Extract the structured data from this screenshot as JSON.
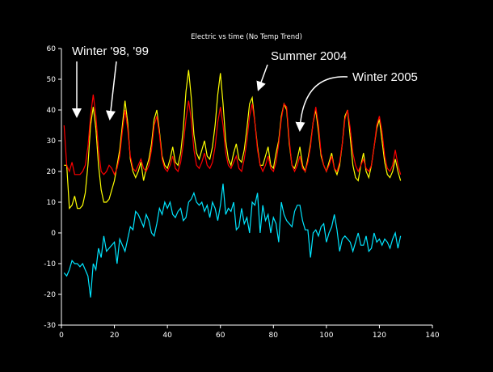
{
  "chart_data": {
    "type": "line",
    "title": "Electric vs time (No Temp Trend)",
    "annotations": [
      "Winter '98, '99",
      "Summer 2004",
      "Winter 2005"
    ],
    "x": [
      1,
      2,
      3,
      4,
      5,
      6,
      7,
      8,
      9,
      10,
      11,
      12,
      13,
      14,
      15,
      16,
      17,
      18,
      19,
      20,
      21,
      22,
      23,
      24,
      25,
      26,
      27,
      28,
      29,
      30,
      31,
      32,
      33,
      34,
      35,
      36,
      37,
      38,
      39,
      40,
      41,
      42,
      43,
      44,
      45,
      46,
      47,
      48,
      49,
      50,
      51,
      52,
      53,
      54,
      55,
      56,
      57,
      58,
      59,
      60,
      61,
      62,
      63,
      64,
      65,
      66,
      67,
      68,
      69,
      70,
      71,
      72,
      73,
      74,
      75,
      76,
      77,
      78,
      79,
      80,
      81,
      82,
      83,
      84,
      85,
      86,
      87,
      88,
      89,
      90,
      91,
      92,
      93,
      94,
      95,
      96,
      97,
      98,
      99,
      100,
      101,
      102,
      103,
      104,
      105,
      106,
      107,
      108,
      109,
      110,
      111,
      112,
      113,
      114,
      115,
      116,
      117,
      118,
      119,
      120,
      121,
      122,
      123,
      124,
      125,
      126,
      127,
      128
    ],
    "series": [
      {
        "color": "#ffff00",
        "values": [
          22,
          22,
          8,
          9,
          12,
          8,
          8,
          9,
          13,
          22,
          35,
          41,
          34,
          22,
          14,
          10,
          10,
          11,
          14,
          17,
          22,
          27,
          35,
          43,
          36,
          24,
          20,
          18,
          20,
          23,
          17,
          21,
          24,
          29,
          37,
          40,
          33,
          25,
          22,
          21,
          24,
          28,
          23,
          22,
          26,
          34,
          46,
          53,
          44,
          32,
          26,
          24,
          27,
          30,
          25,
          24,
          28,
          35,
          45,
          52,
          42,
          30,
          24,
          22,
          26,
          29,
          24,
          23,
          27,
          34,
          42,
          44,
          36,
          28,
          22,
          22,
          25,
          28,
          22,
          21,
          26,
          30,
          38,
          42,
          40,
          29,
          22,
          21,
          24,
          28,
          22,
          20,
          24,
          29,
          36,
          40,
          33,
          25,
          22,
          20,
          23,
          26,
          21,
          19,
          22,
          29,
          38,
          40,
          31,
          22,
          18,
          17,
          22,
          26,
          20,
          18,
          22,
          28,
          34,
          37,
          30,
          23,
          19,
          18,
          20,
          24,
          20,
          17
        ]
      },
      {
        "color": "#ff0000",
        "values": [
          35,
          22,
          20,
          23,
          19,
          19,
          19,
          20,
          22,
          28,
          38,
          45,
          38,
          27,
          20,
          19,
          20,
          22,
          21,
          19,
          21,
          25,
          33,
          40,
          34,
          25,
          21,
          20,
          22,
          24,
          21,
          20,
          22,
          27,
          35,
          38,
          32,
          24,
          21,
          20,
          22,
          25,
          21,
          20,
          23,
          29,
          37,
          43,
          37,
          27,
          22,
          21,
          23,
          26,
          22,
          21,
          23,
          28,
          36,
          41,
          35,
          26,
          22,
          21,
          23,
          25,
          21,
          20,
          24,
          30,
          38,
          42,
          36,
          27,
          22,
          20,
          22,
          25,
          21,
          20,
          23,
          29,
          37,
          42,
          41,
          30,
          22,
          20,
          22,
          25,
          21,
          20,
          23,
          28,
          36,
          41,
          35,
          26,
          22,
          20,
          22,
          25,
          21,
          20,
          23,
          29,
          37,
          40,
          34,
          26,
          22,
          20,
          22,
          24,
          21,
          20,
          22,
          28,
          35,
          38,
          33,
          25,
          21,
          20,
          22,
          27,
          22,
          19
        ]
      },
      {
        "color": "#00e5ff",
        "values": [
          -13,
          -14,
          -12,
          -9,
          -10,
          -10,
          -11,
          -10,
          -12,
          -14,
          -21,
          -10,
          -12,
          -5,
          -8,
          -1,
          -6,
          -5,
          -4,
          -3,
          -10,
          -2,
          -4,
          -6,
          -2,
          2,
          1,
          7,
          6,
          4,
          2,
          6,
          4,
          0,
          -1,
          3,
          8,
          6,
          10,
          8,
          10,
          6,
          5,
          7,
          8,
          4,
          5,
          10,
          11,
          13,
          10,
          9,
          10,
          7,
          9,
          5,
          10,
          8,
          4,
          9,
          16,
          6,
          8,
          7,
          10,
          1,
          2,
          8,
          3,
          5,
          0,
          10,
          9,
          13,
          0,
          9,
          4,
          6,
          0,
          5,
          3,
          -3,
          10,
          6,
          4,
          3,
          2,
          7,
          9,
          9,
          4,
          1,
          1,
          -8,
          0,
          1,
          -1,
          2,
          3,
          -3,
          0,
          2,
          6,
          1,
          -6,
          -2,
          -1,
          -2,
          -3,
          -6,
          -3,
          0,
          -4,
          -4,
          -1,
          -6,
          -5,
          0,
          -3,
          -2,
          -4,
          -2,
          -3,
          -5,
          -2,
          0,
          -5,
          -1
        ]
      }
    ],
    "xlim": [
      0,
      140
    ],
    "xticks": [
      0,
      20,
      40,
      60,
      80,
      100,
      120,
      140
    ],
    "ylim": [
      -30,
      60
    ],
    "yticks": [
      -30,
      -20,
      -10,
      0,
      10,
      20,
      30,
      40,
      50,
      60
    ]
  }
}
